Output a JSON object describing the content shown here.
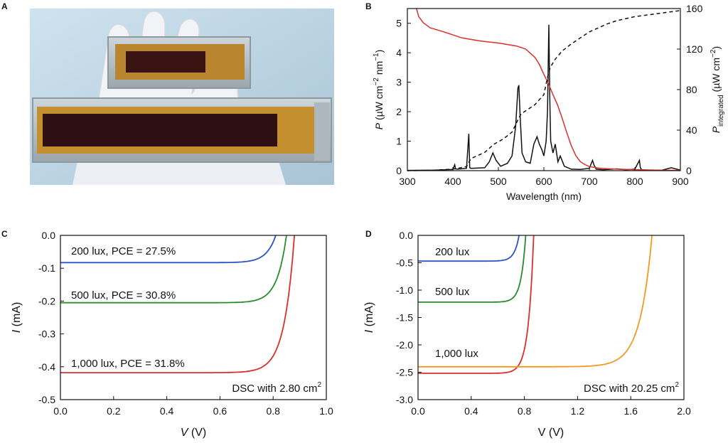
{
  "panels": {
    "A": "A",
    "B": "B",
    "C": "C",
    "D": "D"
  },
  "chart_data": [
    {
      "panel": "B",
      "type": "line",
      "xlabel": "Wavelength (nm)",
      "ylabel_main": "P",
      "ylabel_rest": " (µW cm",
      "ylabel_sup1": "−2",
      "ylabel_mid": " nm",
      "ylabel_sup2": "−1",
      "ylabel_end": ")",
      "y2label_main": "P",
      "y2label_sub": "integrated",
      "y2label_rest": " (µW cm",
      "y2label_sup": "−2",
      "y2label_end": ")",
      "xlim": [
        300,
        900
      ],
      "ylim": [
        0,
        5.5
      ],
      "y2lim": [
        0,
        160
      ],
      "xticks": [
        "300",
        "400",
        "500",
        "600",
        "700",
        "800",
        "900"
      ],
      "yticks": [
        "0",
        "1",
        "2",
        "3",
        "4",
        "5"
      ],
      "y2ticks": [
        "0",
        "40",
        "80",
        "120",
        "160"
      ],
      "colors": {
        "spectrum": "#111111",
        "integrated": "#111111",
        "red_curve": "#d9302c"
      },
      "series": [
        {
          "axis": "left",
          "style": "solid",
          "color": "#111111",
          "x": [
            300,
            360,
            400,
            404,
            406,
            410,
            430,
            435,
            437,
            440,
            470,
            480,
            488,
            495,
            505,
            520,
            530,
            538,
            543,
            545,
            548,
            552,
            560,
            570,
            578,
            585,
            590,
            596,
            600,
            605,
            608,
            611,
            613,
            615,
            620,
            625,
            631,
            636,
            645,
            660,
            680,
            700,
            707,
            710,
            715,
            730,
            760,
            780,
            800,
            810,
            812,
            815,
            830,
            860,
            880,
            900
          ],
          "y": [
            0.01,
            0.02,
            0.04,
            0.2,
            0.06,
            0.05,
            0.08,
            1.25,
            0.1,
            0.08,
            0.1,
            0.3,
            0.6,
            0.35,
            0.15,
            0.25,
            0.5,
            1.5,
            2.8,
            2.9,
            1.8,
            0.6,
            0.3,
            0.25,
            0.9,
            1.15,
            0.9,
            0.7,
            0.5,
            1.0,
            2.0,
            4.95,
            2.5,
            1.0,
            0.6,
            0.9,
            0.3,
            0.5,
            0.15,
            0.05,
            0.04,
            0.08,
            0.35,
            0.2,
            0.05,
            0.03,
            0.06,
            0.03,
            0.05,
            0.35,
            0.1,
            0.03,
            0.02,
            0.02,
            0.1,
            0.02
          ]
        },
        {
          "axis": "right",
          "style": "solid",
          "color": "#d9302c",
          "x": [
            320,
            325,
            335,
            350,
            380,
            420,
            460,
            500,
            540,
            560,
            580,
            590,
            600,
            610,
            620,
            630,
            640,
            650,
            660,
            670,
            680,
            690,
            700,
            720,
            740,
            760,
            800,
            850,
            900
          ],
          "y": [
            160,
            152,
            146,
            141,
            137,
            131,
            128,
            126,
            123,
            120,
            112,
            105,
            95,
            86,
            75,
            65,
            52,
            38,
            25,
            15,
            9,
            6,
            4,
            2.5,
            2,
            1.5,
            1,
            0.5,
            0.3
          ]
        },
        {
          "axis": "right",
          "style": "dashed",
          "color": "#111111",
          "x": [
            300,
            350,
            400,
            430,
            436,
            440,
            470,
            490,
            510,
            530,
            545,
            550,
            580,
            600,
            608,
            614,
            625,
            640,
            660,
            680,
            700,
            720,
            740,
            760,
            800,
            850,
            900
          ],
          "y": [
            0,
            0.3,
            1.5,
            4,
            9,
            12,
            18,
            26,
            31,
            38,
            52,
            56,
            65,
            75,
            92,
            102,
            110,
            118,
            125,
            131,
            137,
            141,
            145,
            148,
            152,
            155,
            158
          ]
        }
      ]
    },
    {
      "panel": "C",
      "type": "line",
      "xlabel_main": "V",
      "xlabel_rest": " (V)",
      "ylabel_main": "I",
      "ylabel_rest": " (mA)",
      "xlim": [
        0,
        1.0
      ],
      "ylim": [
        -0.5,
        0
      ],
      "xticks": [
        "0.0",
        "0.2",
        "0.4",
        "0.6",
        "0.8",
        "1.0"
      ],
      "yticks": [
        "0.0",
        "-0.1",
        "-0.2",
        "-0.3",
        "-0.4",
        "-0.5"
      ],
      "annotation": "DSC with 2.80 cm",
      "annotation_sup": "2",
      "series": [
        {
          "name": "200 lux, PCE = 27.5%",
          "color": "#2c54c4",
          "isc": -0.083,
          "voc": 0.81,
          "ideality": 0.035
        },
        {
          "name": "500 lux, PCE = 30.8%",
          "color": "#2b8a2b",
          "isc": -0.205,
          "voc": 0.85,
          "ideality": 0.035
        },
        {
          "name": "1,000 lux, PCE = 31.8%",
          "color": "#d9302c",
          "isc": -0.418,
          "voc": 0.88,
          "ideality": 0.038
        }
      ]
    },
    {
      "panel": "D",
      "type": "line",
      "xlabel": "V (V)",
      "ylabel_main": "I",
      "ylabel_rest": " (mA)",
      "xlim": [
        0,
        2.0
      ],
      "ylim": [
        -3.0,
        0
      ],
      "xticks": [
        "0.0",
        "0.4",
        "0.8",
        "1.2",
        "1.6",
        "2.0"
      ],
      "yticks": [
        "0.0",
        "-0.5",
        "-1.0",
        "-1.5",
        "-2.0",
        "-2.5",
        "-3.0"
      ],
      "annotation": "DSC with 20.25 cm",
      "annotation_sup": "2",
      "labels": [
        "200 lux",
        "500 lux",
        "1,000 lux"
      ],
      "series": [
        {
          "color": "#2c54c4",
          "isc": -0.47,
          "voc": 0.76,
          "ideality": 0.035
        },
        {
          "color": "#2b8a2b",
          "isc": -1.22,
          "voc": 0.81,
          "ideality": 0.035
        },
        {
          "color": "#d9302c",
          "isc": -2.52,
          "voc": 0.87,
          "ideality": 0.04
        },
        {
          "color": "#f29a1e",
          "isc": -2.4,
          "voc": 1.76,
          "ideality": 0.09
        }
      ]
    }
  ]
}
